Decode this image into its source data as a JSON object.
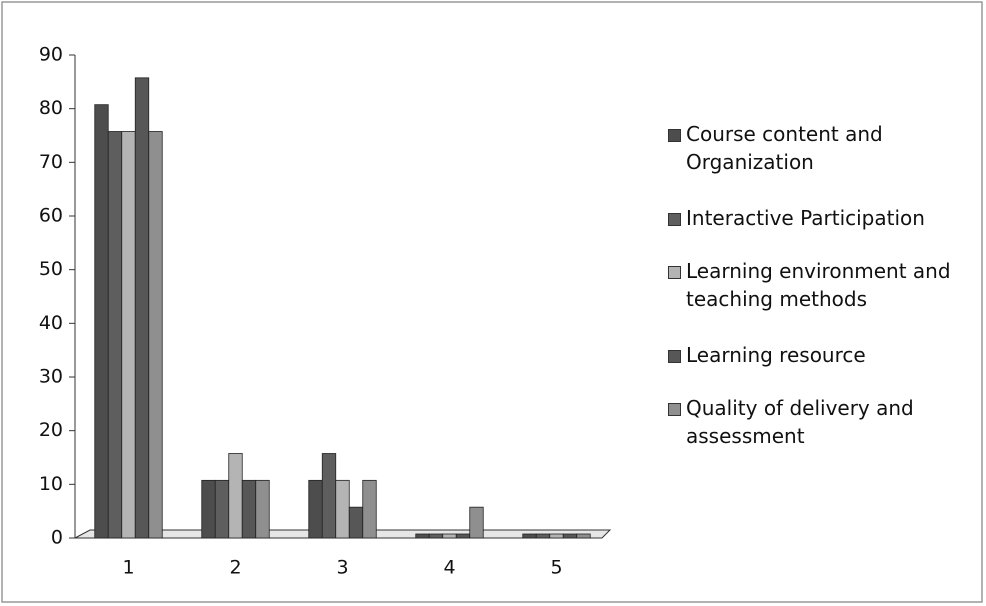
{
  "chart_data": {
    "type": "bar",
    "categories": [
      "1",
      "2",
      "3",
      "4",
      "5"
    ],
    "series": [
      {
        "name": "Course content and Organization",
        "color": "#4d4d4d",
        "values": [
          80,
          10,
          10,
          0,
          0
        ]
      },
      {
        "name": "Interactive Participation",
        "color": "#5e5e5e",
        "values": [
          75,
          10,
          15,
          0,
          0
        ]
      },
      {
        "name": "Learning environment and teaching methods",
        "color": "#b4b4b4",
        "values": [
          75,
          15,
          10,
          0,
          0
        ]
      },
      {
        "name": "Learning resource",
        "color": "#575757",
        "values": [
          85,
          10,
          5,
          0,
          0
        ]
      },
      {
        "name": "Quality of delivery and assessment",
        "color": "#8f8f8f",
        "values": [
          75,
          10,
          10,
          5,
          0
        ]
      }
    ],
    "ylim": [
      0,
      90
    ],
    "yticks": [
      0,
      10,
      20,
      30,
      40,
      50,
      60,
      70,
      80,
      90
    ],
    "grid": false
  }
}
